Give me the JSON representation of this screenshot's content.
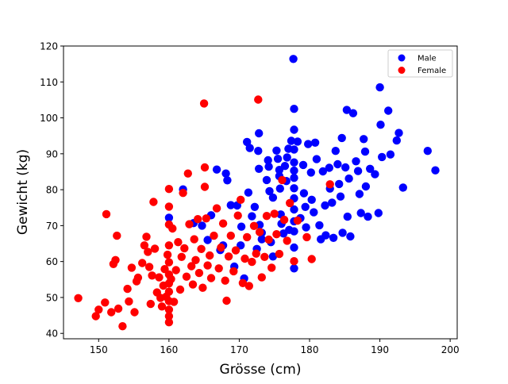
{
  "chart_data": {
    "type": "scatter",
    "xlabel": "Grösse (cm)",
    "ylabel": "Gewicht (kg)",
    "xlim": [
      145,
      201
    ],
    "ylim": [
      38.5,
      120
    ],
    "xticks": [
      "150",
      "160",
      "170",
      "180",
      "190",
      "200"
    ],
    "yticks": [
      "40",
      "50",
      "60",
      "70",
      "80",
      "90",
      "100",
      "110",
      "120"
    ],
    "legend_position": "top-right",
    "grid": false,
    "series": [
      {
        "name": "Male",
        "color": "#0000ff",
        "points": [
          [
            160,
            72.2
          ],
          [
            162,
            80.1
          ],
          [
            163.5,
            70.7
          ],
          [
            164.7,
            70
          ],
          [
            165.5,
            66
          ],
          [
            166,
            72.9
          ],
          [
            166.8,
            85.6
          ],
          [
            167.3,
            63.2
          ],
          [
            167.7,
            64.5
          ],
          [
            168.1,
            84.5
          ],
          [
            168.3,
            82.6
          ],
          [
            168.8,
            75.7
          ],
          [
            169.3,
            58.6
          ],
          [
            169.7,
            75.6
          ],
          [
            170.2,
            64.5
          ],
          [
            170.3,
            69.7
          ],
          [
            170.7,
            55.3
          ],
          [
            171.1,
            93.3
          ],
          [
            171.3,
            79.2
          ],
          [
            171.5,
            91.6
          ],
          [
            171.8,
            72.6
          ],
          [
            172.2,
            75.2
          ],
          [
            172.5,
            63.5
          ],
          [
            172.7,
            90.8
          ],
          [
            172.8,
            95.7
          ],
          [
            172.8,
            85.8
          ],
          [
            172.9,
            70.2
          ],
          [
            173.2,
            68
          ],
          [
            173.2,
            66.2
          ],
          [
            173.9,
            82.7
          ],
          [
            174.1,
            88.2
          ],
          [
            174.2,
            86.4
          ],
          [
            174.3,
            79.6
          ],
          [
            174.5,
            65.4
          ],
          [
            174.8,
            77.8
          ],
          [
            174.8,
            61.4
          ],
          [
            175.3,
            90.9
          ],
          [
            175.5,
            88.6
          ],
          [
            175.7,
            85.5
          ],
          [
            175.7,
            83.8
          ],
          [
            175.8,
            80.3
          ],
          [
            175.9,
            73.1
          ],
          [
            176,
            70.5
          ],
          [
            176.3,
            67.8
          ],
          [
            176.5,
            86.6
          ],
          [
            176.7,
            82.4
          ],
          [
            176.8,
            89
          ],
          [
            177,
            91.4
          ],
          [
            177.1,
            68.8
          ],
          [
            177.4,
            93.6
          ],
          [
            177.7,
            116.4
          ],
          [
            177.8,
            102.5
          ],
          [
            177.8,
            96.7
          ],
          [
            177.8,
            91.2
          ],
          [
            177.8,
            87.6
          ],
          [
            177.8,
            85.3
          ],
          [
            177.8,
            83.3
          ],
          [
            177.8,
            80.4
          ],
          [
            177.8,
            77.6
          ],
          [
            177.8,
            74.5
          ],
          [
            177.8,
            71.2
          ],
          [
            177.8,
            68.4
          ],
          [
            177.8,
            63.9
          ],
          [
            177.8,
            58.1
          ],
          [
            178.3,
            93.4
          ],
          [
            178.7,
            72.1
          ],
          [
            179.1,
            86.9
          ],
          [
            179.2,
            79
          ],
          [
            179.4,
            75.2
          ],
          [
            179.5,
            69.5
          ],
          [
            179.8,
            92.7
          ],
          [
            180.2,
            84.8
          ],
          [
            180.3,
            77.2
          ],
          [
            180.6,
            73.7
          ],
          [
            180.8,
            93.1
          ],
          [
            181,
            88.5
          ],
          [
            181.4,
            70.1
          ],
          [
            181.6,
            66.2
          ],
          [
            181.9,
            85.1
          ],
          [
            182.2,
            75.6
          ],
          [
            182.3,
            67.3
          ],
          [
            182.8,
            86.1
          ],
          [
            182.9,
            80.3
          ],
          [
            183.2,
            76.4
          ],
          [
            183.4,
            66.6
          ],
          [
            183.7,
            90.8
          ],
          [
            184,
            87.1
          ],
          [
            184.2,
            81.6
          ],
          [
            184.4,
            78.1
          ],
          [
            184.6,
            94.4
          ],
          [
            184.7,
            68
          ],
          [
            185.1,
            86.2
          ],
          [
            185.3,
            102.2
          ],
          [
            185.4,
            72.5
          ],
          [
            185.6,
            83.1
          ],
          [
            185.8,
            67
          ],
          [
            186.2,
            101.3
          ],
          [
            186.6,
            87.9
          ],
          [
            186.9,
            85.2
          ],
          [
            187.1,
            78.8
          ],
          [
            187.3,
            73.5
          ],
          [
            187.7,
            94.1
          ],
          [
            187.9,
            90.6
          ],
          [
            188,
            80.9
          ],
          [
            188.3,
            72.5
          ],
          [
            188.6,
            85.8
          ],
          [
            189.3,
            84.3
          ],
          [
            189.8,
            73.5
          ],
          [
            190,
            108.5
          ],
          [
            190.1,
            98.1
          ],
          [
            190.3,
            89.1
          ],
          [
            191.2,
            102
          ],
          [
            191.5,
            89.8
          ],
          [
            192.4,
            93.7
          ],
          [
            192.7,
            95.8
          ],
          [
            193.3,
            80.6
          ],
          [
            196.8,
            90.8
          ],
          [
            197.9,
            85.4
          ]
        ]
      },
      {
        "name": "Female",
        "color": "#ff0000",
        "points": [
          [
            147.1,
            49.8
          ],
          [
            149.6,
            44.8
          ],
          [
            150,
            46.6
          ],
          [
            150.9,
            48.6
          ],
          [
            151.1,
            73.2
          ],
          [
            151.8,
            45.9
          ],
          [
            152.1,
            59.3
          ],
          [
            152.4,
            60.4
          ],
          [
            152.6,
            67.2
          ],
          [
            152.8,
            46.9
          ],
          [
            153.4,
            42
          ],
          [
            154.1,
            52.4
          ],
          [
            154.3,
            48.9
          ],
          [
            154.7,
            58.3
          ],
          [
            155.1,
            45.9
          ],
          [
            155.4,
            54.5
          ],
          [
            155.6,
            55.5
          ],
          [
            156.2,
            59.6
          ],
          [
            156.5,
            64.5
          ],
          [
            156.8,
            66.9
          ],
          [
            157,
            62.7
          ],
          [
            157.2,
            58.5
          ],
          [
            157.4,
            48.2
          ],
          [
            157.6,
            56.1
          ],
          [
            157.8,
            76.6
          ],
          [
            158,
            63.6
          ],
          [
            158.3,
            51.4
          ],
          [
            158.6,
            55.6
          ],
          [
            158.8,
            49.9
          ],
          [
            159,
            47.5
          ],
          [
            159.2,
            53.3
          ],
          [
            159.4,
            57.9
          ],
          [
            159.6,
            50.2
          ],
          [
            159.8,
            61.9
          ],
          [
            160,
            80.2
          ],
          [
            160,
            75.3
          ],
          [
            160,
            70.3
          ],
          [
            160,
            64.5
          ],
          [
            160,
            59.8
          ],
          [
            160,
            56.4
          ],
          [
            160,
            53.9
          ],
          [
            160,
            51.6
          ],
          [
            160,
            49
          ],
          [
            160,
            46.6
          ],
          [
            160,
            44.8
          ],
          [
            160,
            43.1
          ],
          [
            160.3,
            55.1
          ],
          [
            160.5,
            69.2
          ],
          [
            160.7,
            48.8
          ],
          [
            161,
            57.6
          ],
          [
            161.3,
            65.4
          ],
          [
            161.6,
            52.2
          ],
          [
            161.8,
            61.3
          ],
          [
            162,
            79.1
          ],
          [
            162.2,
            63.7
          ],
          [
            162.5,
            55.8
          ],
          [
            162.7,
            84.5
          ],
          [
            162.9,
            70.4
          ],
          [
            163.2,
            58.7
          ],
          [
            163.4,
            53.6
          ],
          [
            163.6,
            66.2
          ],
          [
            163.8,
            60.4
          ],
          [
            164.1,
            71.8
          ],
          [
            164.3,
            56.8
          ],
          [
            164.6,
            63.5
          ],
          [
            164.8,
            52.7
          ],
          [
            165,
            104
          ],
          [
            165.1,
            86.2
          ],
          [
            165.1,
            80.8
          ],
          [
            165.3,
            72
          ],
          [
            165.5,
            58.9
          ],
          [
            165.8,
            61.7
          ],
          [
            166,
            55.4
          ],
          [
            166.4,
            67.2
          ],
          [
            166.8,
            74.8
          ],
          [
            167.1,
            58.1
          ],
          [
            167.4,
            63.9
          ],
          [
            167.7,
            70.6
          ],
          [
            168,
            54.7
          ],
          [
            168.2,
            49.1
          ],
          [
            168.5,
            61.4
          ],
          [
            168.8,
            67.2
          ],
          [
            169.2,
            57.3
          ],
          [
            169.5,
            63.1
          ],
          [
            169.8,
            72.8
          ],
          [
            170.2,
            77.2
          ],
          [
            170.5,
            54
          ],
          [
            170.8,
            60.8
          ],
          [
            171.1,
            66.8
          ],
          [
            171.4,
            53.2
          ],
          [
            171.8,
            59.9
          ],
          [
            172.1,
            69.9
          ],
          [
            172.4,
            62.2
          ],
          [
            172.7,
            105.1
          ],
          [
            172.9,
            68.2
          ],
          [
            173.2,
            55.6
          ],
          [
            173.6,
            61.3
          ],
          [
            173.9,
            72.7
          ],
          [
            174.2,
            66.1
          ],
          [
            174.6,
            58.3
          ],
          [
            175,
            73.3
          ],
          [
            175.3,
            67.6
          ],
          [
            175.7,
            62.1
          ],
          [
            176.1,
            82.7
          ],
          [
            176.4,
            71.6
          ],
          [
            176.8,
            65.8
          ],
          [
            177.2,
            76.3
          ],
          [
            177.8,
            60.1
          ],
          [
            178.3,
            71.4
          ],
          [
            179.6,
            66.8
          ],
          [
            180.3,
            60.7
          ],
          [
            182.9,
            81.5
          ]
        ]
      }
    ]
  }
}
